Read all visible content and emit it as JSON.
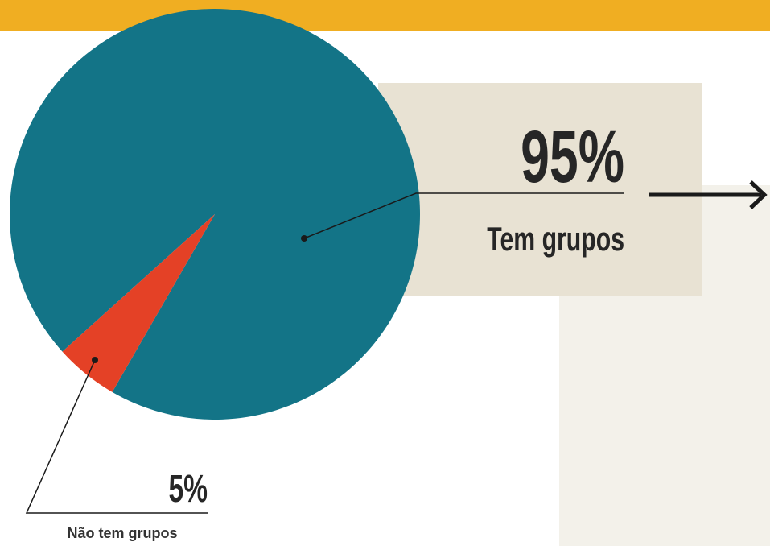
{
  "chart_data": {
    "type": "pie",
    "categories": [
      "Tem grupos",
      "Não tem grupos"
    ],
    "values": [
      95,
      5
    ],
    "value_labels": [
      "95%",
      "5%"
    ],
    "colors": [
      "#137487",
      "#E44126"
    ]
  }
}
